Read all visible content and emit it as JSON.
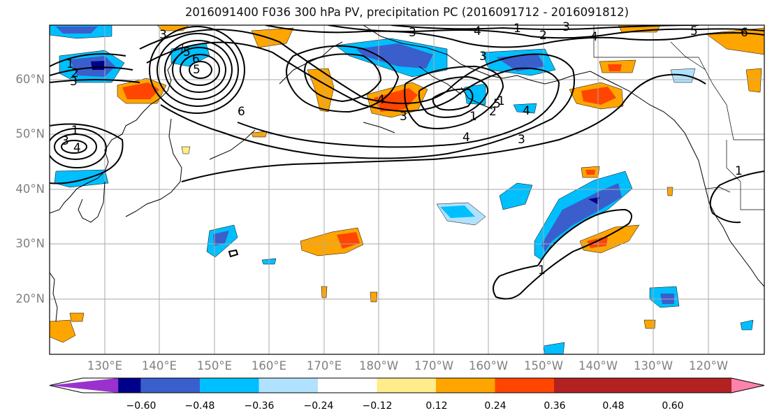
{
  "title": "2016091400 F036 300 hPa PV, precipitation PC (2016091712 - 2016091812)",
  "lat_labels": [
    "60°N",
    "50°N",
    "40°N",
    "30°N",
    "20°N"
  ],
  "lon_labels": [
    "130°E",
    "140°E",
    "150°E",
    "160°E",
    "170°E",
    "180°W",
    "170°W",
    "160°W",
    "150°W",
    "140°W",
    "130°W",
    "120°W"
  ],
  "colorbar": {
    "ticks": [
      "−0.60",
      "−0.48",
      "−0.36",
      "−0.24",
      "−0.12",
      "0.12",
      "0.24",
      "0.36",
      "0.48",
      "0.60"
    ],
    "colors": [
      "#9932cc",
      "#00008b",
      "#3a5fcd",
      "#00bfff",
      "#b0e2ff",
      "#ffffff",
      "#ffec8b",
      "#ffa500",
      "#ff4500",
      "#b22222",
      "#ff82ab"
    ]
  },
  "contour_labels": [
    "1",
    "2",
    "3",
    "1",
    "3",
    "4",
    "5",
    "6",
    "5",
    "6",
    "3",
    "4",
    "1",
    "2",
    "3",
    "4",
    "5",
    "6",
    "3",
    "4",
    "3",
    "4",
    "5",
    "4",
    "2",
    "1",
    "3",
    "1",
    "3",
    "1",
    "1"
  ],
  "colors": {
    "land_outline": "#000000",
    "grid": "#aaaaaa",
    "contour": "#000000"
  }
}
